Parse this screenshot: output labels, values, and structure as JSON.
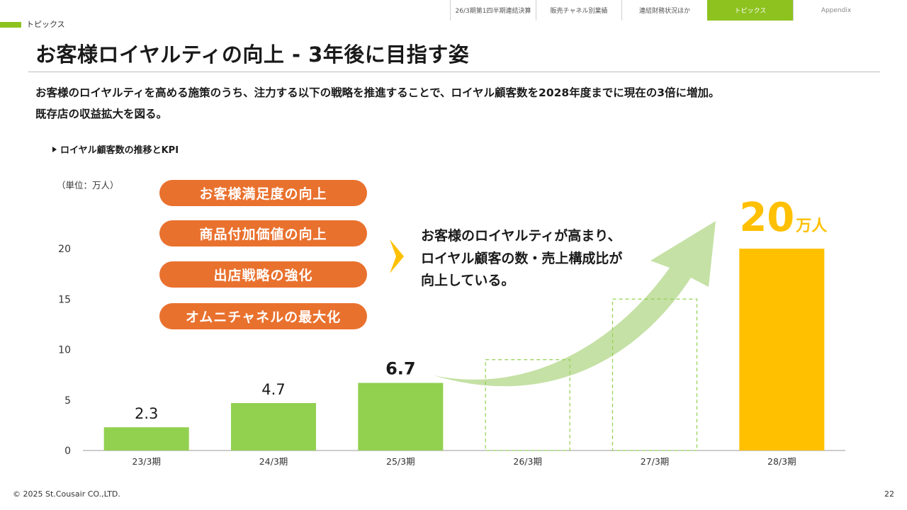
{
  "nav": {
    "tabs": [
      {
        "label": "26/3期第1四半期連結決算",
        "active": false
      },
      {
        "label": "販売チャネル別業績",
        "active": false
      },
      {
        "label": "連結財務状況ほか",
        "active": false
      },
      {
        "label": "トピックス",
        "active": true
      },
      {
        "label": "Appendix",
        "active": false
      }
    ]
  },
  "section_label": "トピックス",
  "title": "お客様ロイヤルティの向上 - 3年後に目指す姿",
  "lead": {
    "line1": "お客様のロイヤルティを高める施策のうち、注力する以下の戦略を推進することで、ロイヤル顧客数を2028年度までに現在の3倍に増加。",
    "line2": "既存店の収益拡大を図る。"
  },
  "subhead": "ロイヤル顧客数の推移とKPI",
  "unit_label": "（単位：万人）",
  "strategies": [
    "お客様満足度の向上",
    "商品付加価値の向上",
    "出店戦略の強化",
    "オムニチャネルの最大化"
  ],
  "callout": "お客様のロイヤルティが高まり、\nロイヤル顧客の数・売上構成比が\n向上している。",
  "colors": {
    "accent_green": "#8dc21f",
    "bar_green": "#92d050",
    "target_yellow": "#ffc000",
    "pill_orange": "#e9712e",
    "arrow_green": "#c5e1a5",
    "dashed_green": "#92d050"
  },
  "chart_data": {
    "type": "bar",
    "categories": [
      "23/3期",
      "24/3期",
      "25/3期",
      "26/3期",
      "27/3期",
      "28/3期"
    ],
    "values": [
      2.3,
      4.7,
      6.7,
      null,
      null,
      20
    ],
    "placeholder_values": [
      null,
      null,
      null,
      9,
      15,
      null
    ],
    "value_labels": [
      "2.3",
      "4.7",
      "6.7",
      "",
      "",
      ""
    ],
    "yticks": [
      0,
      5,
      10,
      15,
      20
    ],
    "ylim": [
      0,
      20
    ],
    "target_label": {
      "number": "20",
      "unit": "万人"
    },
    "xlabel": "",
    "ylabel": ""
  },
  "footer": {
    "copyright": "© 2025 St.Cousair CO.,LTD.",
    "page": "22"
  }
}
